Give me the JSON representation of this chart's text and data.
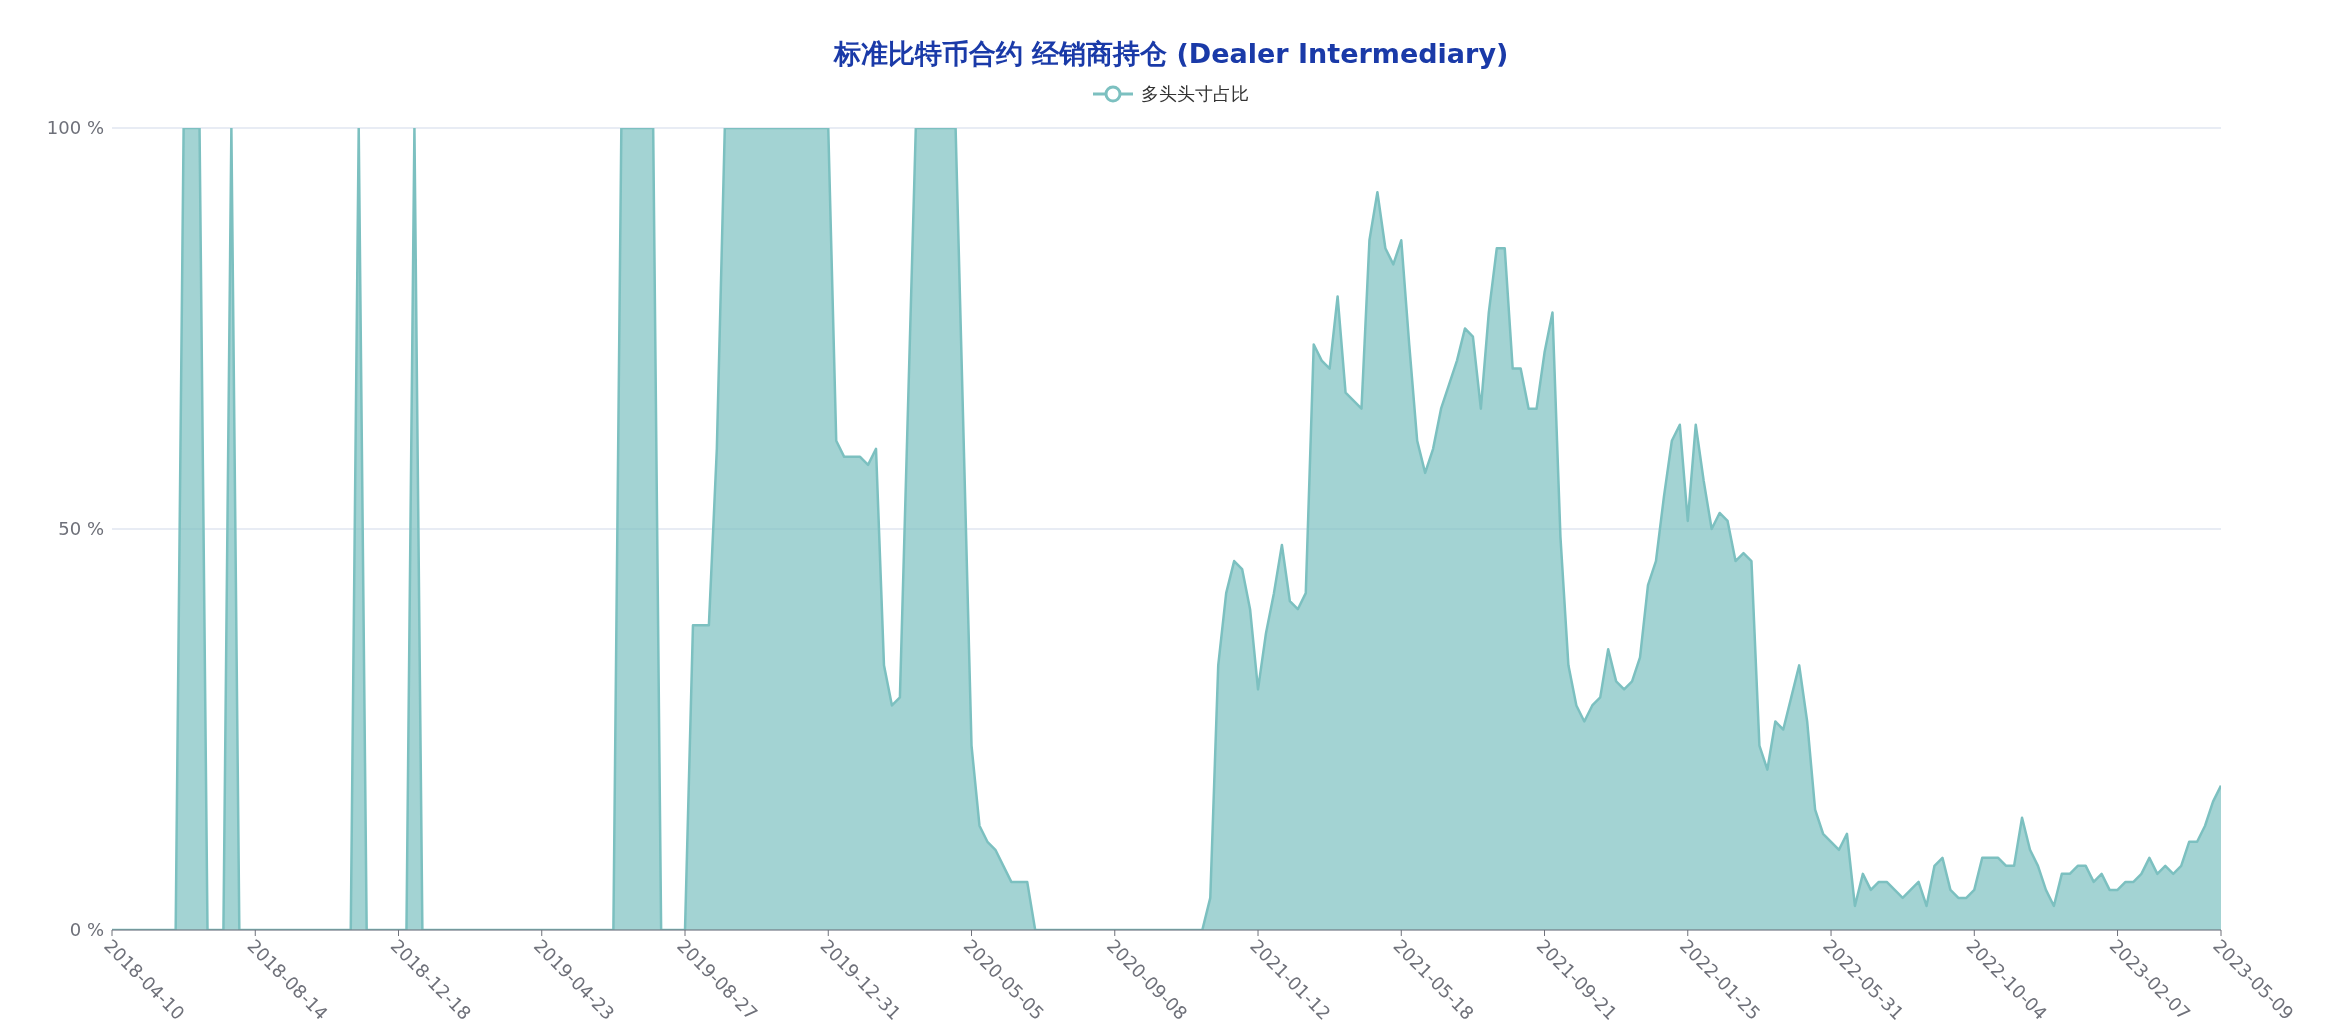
{
  "chart_data": {
    "type": "area",
    "title": "标准比特币合约 经销商持仓 (Dealer Intermediary)",
    "legend": "top",
    "grid": "y",
    "xlim": [
      "2018-04-10",
      "2023-05-09"
    ],
    "xticks": [
      "2018-04-10",
      "2018-08-14",
      "2018-12-18",
      "2019-04-23",
      "2019-08-27",
      "2019-12-31",
      "2020-05-05",
      "2020-09-08",
      "2021-01-12",
      "2021-05-18",
      "2021-09-21",
      "2022-01-25",
      "2022-05-31",
      "2022-10-04",
      "2023-02-07",
      "2023-05-09"
    ],
    "ylim": [
      0,
      100
    ],
    "yticks": [
      {
        "value": 0,
        "label": "0 %"
      },
      {
        "value": 50,
        "label": "50 %"
      },
      {
        "value": 100,
        "label": "100 %"
      }
    ],
    "series": [
      {
        "name": "多头头寸占比",
        "color": "#7cc0c0",
        "x": [
          "2018-04-10",
          "2018-06-05",
          "2018-06-12",
          "2018-06-26",
          "2018-07-03",
          "2018-07-17",
          "2018-07-24",
          "2018-07-31",
          "2018-11-06",
          "2018-11-13",
          "2018-11-20",
          "2018-12-25",
          "2019-01-01",
          "2019-01-08",
          "2019-06-25",
          "2019-07-02",
          "2019-07-30",
          "2019-08-06",
          "2019-08-27",
          "2019-09-03",
          "2019-09-17",
          "2019-09-24",
          "2019-10-01",
          "2019-12-31",
          "2020-01-07",
          "2020-01-14",
          "2020-01-28",
          "2020-02-04",
          "2020-02-11",
          "2020-02-18",
          "2020-02-25",
          "2020-03-03",
          "2020-03-17",
          "2020-04-21",
          "2020-05-05",
          "2020-05-12",
          "2020-05-19",
          "2020-05-26",
          "2020-06-02",
          "2020-06-09",
          "2020-06-16",
          "2020-06-23",
          "2020-06-30",
          "2020-11-24",
          "2020-12-01",
          "2020-12-08",
          "2020-12-15",
          "2020-12-22",
          "2020-12-29",
          "2021-01-05",
          "2021-01-12",
          "2021-01-19",
          "2021-01-26",
          "2021-02-02",
          "2021-02-09",
          "2021-02-16",
          "2021-02-23",
          "2021-03-02",
          "2021-03-09",
          "2021-03-16",
          "2021-03-23",
          "2021-03-30",
          "2021-04-06",
          "2021-04-13",
          "2021-04-20",
          "2021-04-27",
          "2021-05-04",
          "2021-05-11",
          "2021-05-18",
          "2021-05-25",
          "2021-06-01",
          "2021-06-08",
          "2021-06-15",
          "2021-06-22",
          "2021-06-29",
          "2021-07-06",
          "2021-07-13",
          "2021-07-20",
          "2021-07-27",
          "2021-08-03",
          "2021-08-10",
          "2021-08-17",
          "2021-08-24",
          "2021-08-31",
          "2021-09-07",
          "2021-09-14",
          "2021-09-21",
          "2021-09-28",
          "2021-10-05",
          "2021-10-12",
          "2021-10-19",
          "2021-10-26",
          "2021-11-02",
          "2021-11-09",
          "2021-11-16",
          "2021-11-23",
          "2021-11-30",
          "2021-12-07",
          "2021-12-14",
          "2021-12-21",
          "2021-12-28",
          "2022-01-04",
          "2022-01-11",
          "2022-01-18",
          "2022-01-25",
          "2022-02-01",
          "2022-02-08",
          "2022-02-15",
          "2022-02-22",
          "2022-03-01",
          "2022-03-08",
          "2022-03-15",
          "2022-03-22",
          "2022-03-29",
          "2022-04-05",
          "2022-04-12",
          "2022-04-19",
          "2022-04-26",
          "2022-05-03",
          "2022-05-10",
          "2022-05-17",
          "2022-05-24",
          "2022-05-31",
          "2022-06-07",
          "2022-06-14",
          "2022-06-21",
          "2022-06-28",
          "2022-07-05",
          "2022-07-12",
          "2022-07-19",
          "2022-07-26",
          "2022-08-02",
          "2022-08-09",
          "2022-08-16",
          "2022-08-23",
          "2022-08-30",
          "2022-09-06",
          "2022-09-13",
          "2022-09-20",
          "2022-09-27",
          "2022-10-04",
          "2022-10-11",
          "2022-10-18",
          "2022-10-25",
          "2022-11-01",
          "2022-11-08",
          "2022-11-15",
          "2022-11-22",
          "2022-11-29",
          "2022-12-06",
          "2022-12-13",
          "2022-12-20",
          "2022-12-27",
          "2023-01-03",
          "2023-01-10",
          "2023-01-17",
          "2023-01-24",
          "2023-01-31",
          "2023-02-07",
          "2023-02-14",
          "2023-02-21",
          "2023-02-28",
          "2023-03-07",
          "2023-03-14",
          "2023-03-21",
          "2023-03-28",
          "2023-04-04",
          "2023-04-11",
          "2023-04-18",
          "2023-04-25",
          "2023-05-02",
          "2023-05-09"
        ],
        "values": [
          0,
          0,
          100,
          100,
          0,
          0,
          100,
          0,
          0,
          100,
          0,
          0,
          100,
          0,
          0,
          100,
          100,
          0,
          0,
          38,
          38,
          60,
          100,
          100,
          61,
          59,
          59,
          58,
          60,
          33,
          28,
          29,
          100,
          100,
          23,
          13,
          11,
          10,
          8,
          6,
          6,
          6,
          0,
          0,
          4,
          33,
          42,
          46,
          45,
          40,
          30,
          37,
          42,
          48,
          41,
          40,
          42,
          73,
          71,
          70,
          79,
          67,
          66,
          65,
          86,
          92,
          85,
          83,
          86,
          73,
          61,
          57,
          60,
          65,
          68,
          71,
          75,
          74,
          65,
          77,
          85,
          85,
          70,
          70,
          65,
          65,
          72,
          77,
          49,
          33,
          28,
          26,
          28,
          29,
          35,
          31,
          30,
          31,
          34,
          43,
          46,
          54,
          61,
          63,
          51,
          63,
          56,
          50,
          52,
          51,
          46,
          47,
          46,
          23,
          20,
          26,
          25,
          29,
          33,
          26,
          15,
          12,
          11,
          10,
          12,
          3,
          7,
          5,
          6,
          6,
          5,
          4,
          5,
          6,
          3,
          8,
          9,
          5,
          4,
          4,
          5,
          9,
          9,
          9,
          8,
          8,
          14,
          10,
          8,
          5,
          3,
          7,
          7,
          8,
          8,
          6,
          7,
          5,
          5,
          6,
          6,
          7,
          9,
          7,
          8,
          7,
          8,
          11,
          11,
          13,
          16,
          18
        ]
      }
    ]
  }
}
